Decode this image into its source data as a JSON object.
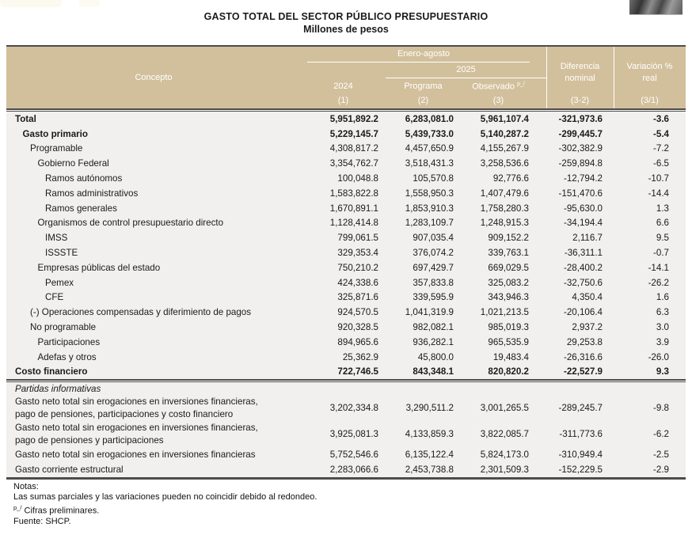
{
  "page": {
    "title": "GASTO TOTAL DEL SECTOR PÚBLICO PRESUPUESTARIO",
    "subtitle": "Millones de pesos"
  },
  "header": {
    "concepto": "Concepto",
    "period_group": "Enero-agosto",
    "year_2024": "2024",
    "year_2025": "2025",
    "programa": "Programa",
    "observado": "Observado",
    "prelim_marker": "p_/",
    "diferencia": "Diferencia nominal",
    "diferencia_line1": "Diferencia",
    "diferencia_line2": "nominal",
    "variacion": "Variación % real",
    "variacion_line1": "Variación %",
    "variacion_line2": "real",
    "col_refs": {
      "c1": "(1)",
      "c2": "(2)",
      "c3": "(3)",
      "c4": "(3-2)",
      "c5": "(3/1)"
    }
  },
  "rows": [
    {
      "label": "Total",
      "indent": 0,
      "bold": true,
      "values": [
        "5,951,892.2",
        "6,283,081.0",
        "5,961,107.4",
        "-321,973.6",
        "-3.6"
      ]
    },
    {
      "label": "Gasto primario",
      "indent": 1,
      "bold": true,
      "values": [
        "5,229,145.7",
        "5,439,733.0",
        "5,140,287.2",
        "-299,445.7",
        "-5.4"
      ]
    },
    {
      "label": "Programable",
      "indent": 2,
      "bold": false,
      "values": [
        "4,308,817.2",
        "4,457,650.9",
        "4,155,267.9",
        "-302,382.9",
        "-7.2"
      ]
    },
    {
      "label": "Gobierno Federal",
      "indent": 3,
      "bold": false,
      "values": [
        "3,354,762.7",
        "3,518,431.3",
        "3,258,536.6",
        "-259,894.8",
        "-6.5"
      ]
    },
    {
      "label": "Ramos autónomos",
      "indent": 4,
      "bold": false,
      "values": [
        "100,048.8",
        "105,570.8",
        "92,776.6",
        "-12,794.2",
        "-10.7"
      ]
    },
    {
      "label": "Ramos administrativos",
      "indent": 4,
      "bold": false,
      "values": [
        "1,583,822.8",
        "1,558,950.3",
        "1,407,479.6",
        "-151,470.6",
        "-14.4"
      ]
    },
    {
      "label": "Ramos generales",
      "indent": 4,
      "bold": false,
      "values": [
        "1,670,891.1",
        "1,853,910.3",
        "1,758,280.3",
        "-95,630.0",
        "1.3"
      ]
    },
    {
      "label": "Organismos de control presupuestario directo",
      "indent": 3,
      "bold": false,
      "values": [
        "1,128,414.8",
        "1,283,109.7",
        "1,248,915.3",
        "-34,194.4",
        "6.6"
      ]
    },
    {
      "label": "IMSS",
      "indent": 4,
      "bold": false,
      "values": [
        "799,061.5",
        "907,035.4",
        "909,152.2",
        "2,116.7",
        "9.5"
      ]
    },
    {
      "label": "ISSSTE",
      "indent": 4,
      "bold": false,
      "values": [
        "329,353.4",
        "376,074.2",
        "339,763.1",
        "-36,311.1",
        "-0.7"
      ]
    },
    {
      "label": "Empresas públicas del estado",
      "indent": 3,
      "bold": false,
      "values": [
        "750,210.2",
        "697,429.7",
        "669,029.5",
        "-28,400.2",
        "-14.1"
      ]
    },
    {
      "label": "Pemex",
      "indent": 4,
      "bold": false,
      "values": [
        "424,338.6",
        "357,833.8",
        "325,083.2",
        "-32,750.6",
        "-26.2"
      ]
    },
    {
      "label": "CFE",
      "indent": 4,
      "bold": false,
      "values": [
        "325,871.6",
        "339,595.9",
        "343,946.3",
        "4,350.4",
        "1.6"
      ]
    },
    {
      "label": "(-) Operaciones compensadas y diferimiento de pagos",
      "indent": 2,
      "bold": false,
      "values": [
        "924,570.5",
        "1,041,319.9",
        "1,021,213.5",
        "-20,106.4",
        "6.3"
      ]
    },
    {
      "label": "No programable",
      "indent": 2,
      "bold": false,
      "values": [
        "920,328.5",
        "982,082.1",
        "985,019.3",
        "2,937.2",
        "3.0"
      ]
    },
    {
      "label": "Participaciones",
      "indent": 3,
      "bold": false,
      "values": [
        "894,965.6",
        "936,282.1",
        "965,535.9",
        "29,253.8",
        "3.9"
      ]
    },
    {
      "label": "Adefas y otros",
      "indent": 3,
      "bold": false,
      "values": [
        "25,362.9",
        "45,800.0",
        "19,483.4",
        "-26,316.6",
        "-26.0"
      ]
    },
    {
      "label": "Costo financiero",
      "indent": 0,
      "bold": true,
      "values": [
        "722,746.5",
        "843,348.1",
        "820,820.2",
        "-22,527.9",
        "9.3"
      ]
    }
  ],
  "informativas": {
    "section_label": "Partidas informativas",
    "rows": [
      {
        "label": "Gasto neto total sin erogaciones en inversiones financieras,\npago de pensiones, participaciones y costo financiero",
        "values": [
          "3,202,334.8",
          "3,290,511.2",
          "3,001,265.5",
          "-289,245.7",
          "-9.8"
        ]
      },
      {
        "label": "Gasto neto total sin erogaciones en inversiones financieras,\npago de pensiones y participaciones",
        "values": [
          "3,925,081.3",
          "4,133,859.3",
          "3,822,085.7",
          "-311,773.6",
          "-6.2"
        ]
      },
      {
        "label": "Gasto neto total sin erogaciones en inversiones financieras",
        "values": [
          "5,752,546.6",
          "6,135,122.4",
          "5,824,173.0",
          "-310,949.4",
          "-2.5"
        ]
      },
      {
        "label": "Gasto corriente estructural",
        "values": [
          "2,283,066.6",
          "2,453,738.8",
          "2,301,509.3",
          "-152,229.5",
          "-2.9"
        ]
      }
    ]
  },
  "notes": {
    "label": "Notas:",
    "line1": "Las sumas parciales y las variaciones pueden no coincidir debido al redondeo.",
    "prelim_marker": "p_/",
    "prelim_text": "Cifras preliminares.",
    "source": "Fuente: SHCP."
  },
  "colors": {
    "header_bg": "#d2c09c",
    "header_text": "#ffffff",
    "body_bg": "#f1f0ee",
    "border_dark": "#4c4c4c",
    "text": "#1a1a1a"
  }
}
